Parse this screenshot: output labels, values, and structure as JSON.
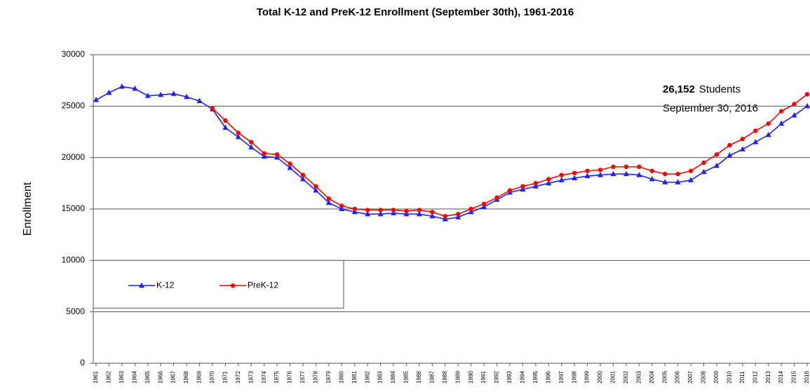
{
  "chart_data": {
    "type": "line",
    "title": "Total K-12 and PreK-12 Enrollment (September 30th), 1961-2016",
    "y_label": "Enrollment",
    "categories": [
      "1961",
      "1962",
      "1963",
      "1964",
      "1965",
      "1966",
      "1967",
      "1968",
      "1969",
      "1970",
      "1971",
      "1972",
      "1973",
      "1974",
      "1975",
      "1976",
      "1977",
      "1978",
      "1979",
      "1980",
      "1981",
      "1982",
      "1983",
      "1984",
      "1985",
      "1986",
      "1987",
      "1988",
      "1989",
      "1990",
      "1991",
      "1992",
      "1993",
      "1994",
      "1995",
      "1996",
      "1997",
      "1998",
      "1999",
      "2000",
      "2001",
      "2002",
      "2003",
      "2004",
      "2005",
      "2006",
      "2007",
      "2008",
      "2009",
      "2010",
      "2011",
      "2012",
      "2013",
      "2014",
      "2015",
      "2016"
    ],
    "series": [
      {
        "name": "K-12",
        "color": "#1f1fff",
        "marker": "triangle",
        "values": [
          25600,
          26300,
          26900,
          26700,
          26000,
          26100,
          26200,
          25900,
          25500,
          24700,
          22900,
          22000,
          21000,
          20100,
          20000,
          19000,
          17900,
          16800,
          15600,
          15000,
          14700,
          14500,
          14500,
          14600,
          14500,
          14500,
          14300,
          14000,
          14200,
          14700,
          15200,
          15900,
          16600,
          16900,
          17200,
          17500,
          17800,
          18000,
          18200,
          18300,
          18400,
          18400,
          18300,
          17900,
          17600,
          17600,
          17800,
          18600,
          19200,
          20200,
          20800,
          21500,
          22200,
          23300,
          24100,
          25000
        ]
      },
      {
        "name": "PreK-12",
        "color": "#ff0000",
        "marker": "circle",
        "values": [
          null,
          null,
          null,
          null,
          null,
          null,
          null,
          null,
          null,
          24800,
          23600,
          22400,
          21500,
          20400,
          20300,
          19400,
          18300,
          17200,
          16000,
          15300,
          15000,
          14900,
          14900,
          14900,
          14800,
          14900,
          14700,
          14300,
          14500,
          15000,
          15500,
          16100,
          16800,
          17200,
          17500,
          17900,
          18300,
          18500,
          18700,
          18800,
          19100,
          19100,
          19100,
          18700,
          18400,
          18400,
          18700,
          19500,
          20300,
          21200,
          21800,
          22600,
          23300,
          24500,
          25200,
          26152
        ]
      }
    ],
    "ylim": [
      0,
      30000
    ],
    "yticks": [
      0,
      5000,
      10000,
      15000,
      20000,
      25000,
      30000
    ],
    "grid": true,
    "legend": "lower-left",
    "annotation": {
      "value_text": "26,152",
      "unit_text": "Students",
      "date_text": "September 30, 2016"
    }
  }
}
